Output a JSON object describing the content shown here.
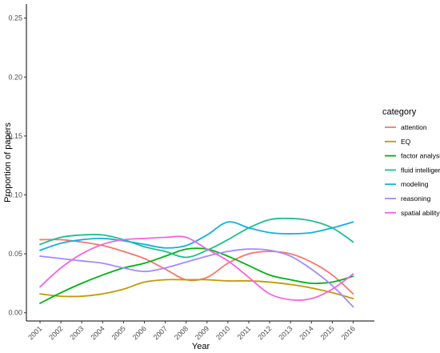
{
  "chart_data": {
    "type": "line",
    "title": "",
    "xlabel": "Year",
    "ylabel": "Proportion of papers",
    "x": [
      "2001",
      "2002",
      "2003",
      "2004",
      "2005",
      "2006",
      "2007",
      "2008",
      "2009",
      "2010",
      "2011",
      "2012",
      "2013",
      "2014",
      "2015",
      "2016"
    ],
    "yticks": [
      "0.00",
      "0.05",
      "0.10",
      "0.15",
      "0.20",
      "0.25"
    ],
    "ylim": [
      -0.007,
      0.262
    ],
    "grid": false,
    "legend": {
      "title": "category",
      "placement": "right"
    },
    "series": [
      {
        "name": "attention",
        "color": "#F8766D",
        "values": [
          0.062,
          0.062,
          0.06,
          0.057,
          0.052,
          0.046,
          0.037,
          0.028,
          0.03,
          0.042,
          0.05,
          0.052,
          0.05,
          0.043,
          0.032,
          0.016
        ]
      },
      {
        "name": "EQ",
        "color": "#C49A00",
        "values": [
          0.016,
          0.014,
          0.014,
          0.016,
          0.02,
          0.026,
          0.028,
          0.028,
          0.028,
          0.027,
          0.027,
          0.026,
          0.024,
          0.021,
          0.017,
          0.012
        ]
      },
      {
        "name": "factor analysis",
        "color": "#00B312",
        "values": [
          0.008,
          0.017,
          0.025,
          0.032,
          0.038,
          0.042,
          0.048,
          0.054,
          0.054,
          0.048,
          0.04,
          0.032,
          0.028,
          0.025,
          0.026,
          0.031
        ]
      },
      {
        "name": "fluid intelligence",
        "color": "#1DBF90",
        "values": [
          0.058,
          0.064,
          0.066,
          0.066,
          0.062,
          0.056,
          0.052,
          0.047,
          0.053,
          0.062,
          0.072,
          0.079,
          0.08,
          0.078,
          0.072,
          0.06
        ]
      },
      {
        "name": "modeling",
        "color": "#14B0E0",
        "values": [
          0.053,
          0.059,
          0.062,
          0.063,
          0.061,
          0.058,
          0.055,
          0.057,
          0.066,
          0.077,
          0.072,
          0.068,
          0.067,
          0.068,
          0.072,
          0.077
        ]
      },
      {
        "name": "reasoning",
        "color": "#A58AFF",
        "values": [
          0.048,
          0.046,
          0.044,
          0.042,
          0.038,
          0.035,
          0.038,
          0.043,
          0.048,
          0.052,
          0.054,
          0.053,
          0.048,
          0.037,
          0.023,
          0.005
        ]
      },
      {
        "name": "spatial ability",
        "color": "#F564E3",
        "values": [
          0.022,
          0.038,
          0.05,
          0.058,
          0.062,
          0.063,
          0.064,
          0.064,
          0.054,
          0.044,
          0.03,
          0.016,
          0.011,
          0.012,
          0.02,
          0.033
        ]
      }
    ]
  }
}
